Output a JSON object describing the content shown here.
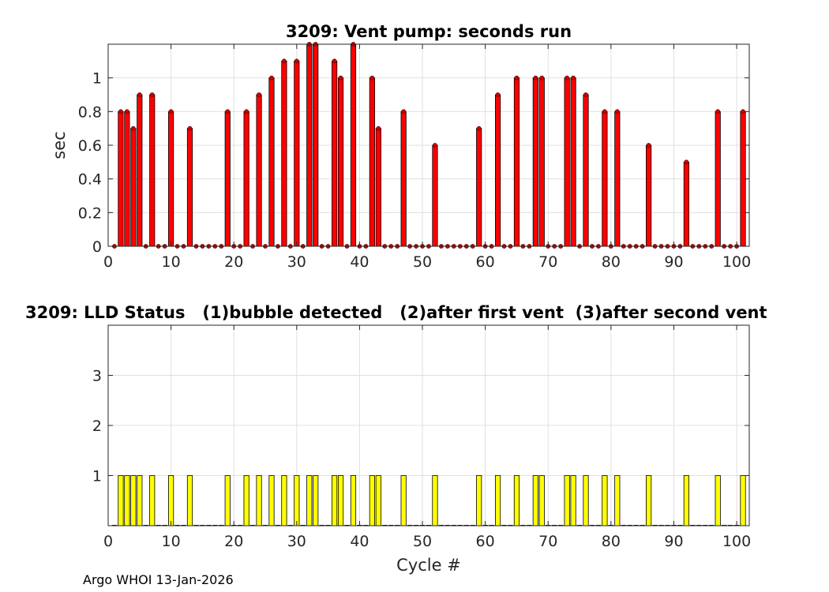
{
  "footer": "Argo WHOI 13-Jan-2026",
  "chart_data": [
    {
      "type": "bar",
      "title": "3209: Vent pump: seconds run",
      "xlabel": "",
      "ylabel": "sec",
      "xlim": [
        0,
        102
      ],
      "ylim": [
        0,
        1.2
      ],
      "xticks": [
        0,
        10,
        20,
        30,
        40,
        50,
        60,
        70,
        80,
        90,
        100
      ],
      "yticks": [
        0,
        0.2,
        0.4,
        0.6,
        0.8,
        1
      ],
      "grid": true,
      "bar_color": "#ff0000",
      "marker_color": "#cc0000",
      "x": [
        1,
        2,
        3,
        4,
        5,
        6,
        7,
        8,
        9,
        10,
        11,
        12,
        13,
        14,
        15,
        16,
        17,
        18,
        19,
        20,
        21,
        22,
        23,
        24,
        25,
        26,
        27,
        28,
        29,
        30,
        31,
        32,
        33,
        34,
        35,
        36,
        37,
        38,
        39,
        40,
        41,
        42,
        43,
        44,
        45,
        46,
        47,
        48,
        49,
        50,
        51,
        52,
        53,
        54,
        55,
        56,
        57,
        58,
        59,
        60,
        61,
        62,
        63,
        64,
        65,
        66,
        67,
        68,
        69,
        70,
        71,
        72,
        73,
        74,
        75,
        76,
        77,
        78,
        79,
        80,
        81,
        82,
        83,
        84,
        85,
        86,
        87,
        88,
        89,
        90,
        91,
        92,
        93,
        94,
        95,
        96,
        97,
        98,
        99,
        100,
        101
      ],
      "values": [
        0,
        0.8,
        0.8,
        0.7,
        0.9,
        0,
        0.9,
        0,
        0,
        0.8,
        0,
        0,
        0.7,
        0,
        0,
        0,
        0,
        0,
        0.8,
        0,
        0,
        0.8,
        0,
        0.9,
        0,
        1.0,
        0,
        1.1,
        0,
        1.1,
        0,
        1.2,
        1.2,
        0,
        0,
        1.1,
        1.0,
        0,
        1.2,
        0,
        0,
        1.0,
        0.7,
        0,
        0,
        0,
        0.8,
        0,
        0,
        0,
        0,
        0.6,
        0,
        0,
        0,
        0,
        0,
        0,
        0.7,
        0,
        0,
        0.9,
        0,
        0,
        1.0,
        0,
        0,
        1.0,
        1.0,
        0,
        0,
        0,
        1.0,
        1.0,
        0,
        0.9,
        0,
        0,
        0.8,
        0,
        0.8,
        0,
        0,
        0,
        0,
        0.6,
        0,
        0,
        0,
        0,
        0,
        0.5,
        0,
        0,
        0,
        0,
        0.8,
        0,
        0,
        0,
        0.8
      ]
    },
    {
      "type": "bar",
      "title": "3209: LLD Status   (1)bubble detected   (2)after first vent  (3)after second vent",
      "xlabel": "Cycle #",
      "ylabel": "",
      "xlim": [
        0,
        102
      ],
      "ylim": [
        0,
        4
      ],
      "xticks": [
        0,
        10,
        20,
        30,
        40,
        50,
        60,
        70,
        80,
        90,
        100
      ],
      "yticks": [
        1,
        2,
        3
      ],
      "grid": true,
      "bar_color": "#ffff00",
      "x": [
        1,
        2,
        3,
        4,
        5,
        6,
        7,
        8,
        9,
        10,
        11,
        12,
        13,
        14,
        15,
        16,
        17,
        18,
        19,
        20,
        21,
        22,
        23,
        24,
        25,
        26,
        27,
        28,
        29,
        30,
        31,
        32,
        33,
        34,
        35,
        36,
        37,
        38,
        39,
        40,
        41,
        42,
        43,
        44,
        45,
        46,
        47,
        48,
        49,
        50,
        51,
        52,
        53,
        54,
        55,
        56,
        57,
        58,
        59,
        60,
        61,
        62,
        63,
        64,
        65,
        66,
        67,
        68,
        69,
        70,
        71,
        72,
        73,
        74,
        75,
        76,
        77,
        78,
        79,
        80,
        81,
        82,
        83,
        84,
        85,
        86,
        87,
        88,
        89,
        90,
        91,
        92,
        93,
        94,
        95,
        96,
        97,
        98,
        99,
        100,
        101
      ],
      "values": [
        0,
        1,
        1,
        1,
        1,
        0,
        1,
        0,
        0,
        1,
        0,
        0,
        1,
        0,
        0,
        0,
        0,
        0,
        1,
        0,
        0,
        1,
        0,
        1,
        0,
        1,
        0,
        1,
        0,
        1,
        0,
        1,
        1,
        0,
        0,
        1,
        1,
        0,
        1,
        0,
        0,
        1,
        1,
        0,
        0,
        0,
        1,
        0,
        0,
        0,
        0,
        1,
        0,
        0,
        0,
        0,
        0,
        0,
        1,
        0,
        0,
        1,
        0,
        0,
        1,
        0,
        0,
        1,
        1,
        0,
        0,
        0,
        1,
        1,
        0,
        1,
        0,
        0,
        1,
        0,
        1,
        0,
        0,
        0,
        0,
        1,
        0,
        0,
        0,
        0,
        0,
        1,
        0,
        0,
        0,
        0,
        1,
        0,
        0,
        0,
        1
      ]
    }
  ]
}
